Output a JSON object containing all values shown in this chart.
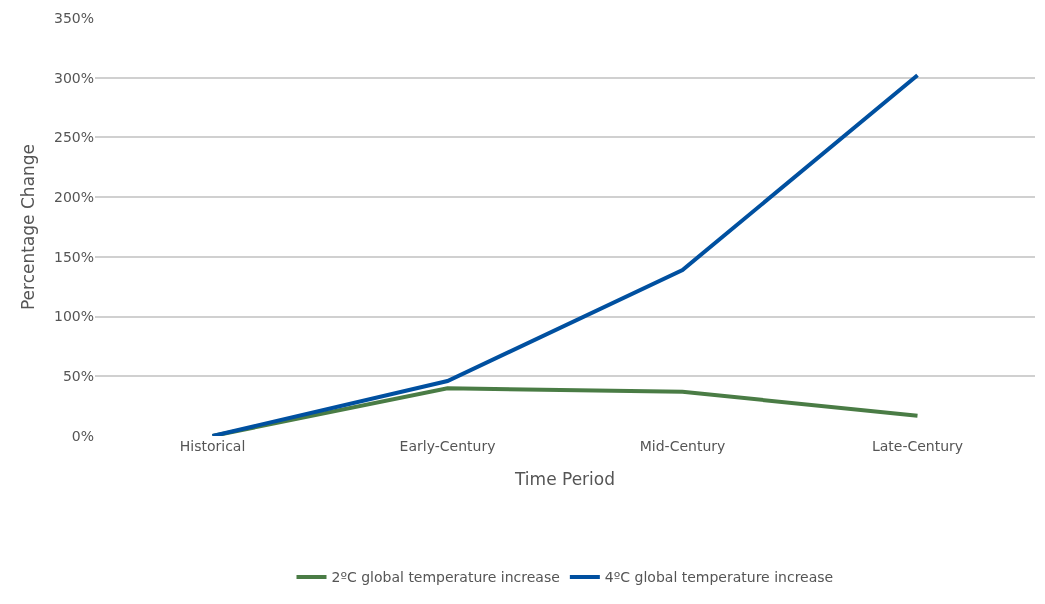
{
  "chart_data": {
    "type": "line",
    "xlabel": "Time Period",
    "ylabel": "Percentage Change",
    "categories": [
      "Historical",
      "Early-Century",
      "Mid-Century",
      "Late-Century"
    ],
    "series": [
      {
        "name": "2ºC global temperature increase",
        "color": "#4a7c45",
        "values": [
          0,
          40,
          37,
          17
        ]
      },
      {
        "name": "4ºC global temperature increase",
        "color": "#0050a0",
        "values": [
          0,
          46,
          139,
          302
        ]
      }
    ],
    "ylim": [
      0,
      350
    ],
    "yticks": [
      {
        "value": 0,
        "label": "0%"
      },
      {
        "value": 50,
        "label": "50%"
      },
      {
        "value": 100,
        "label": "100%"
      },
      {
        "value": 150,
        "label": "150%"
      },
      {
        "value": 200,
        "label": "200%"
      },
      {
        "value": 250,
        "label": "250%"
      },
      {
        "value": 300,
        "label": "300%"
      },
      {
        "value": 350,
        "label": "350%"
      }
    ],
    "grid": "y",
    "legend": "bottom",
    "marker": "none",
    "line_style": "solid"
  }
}
